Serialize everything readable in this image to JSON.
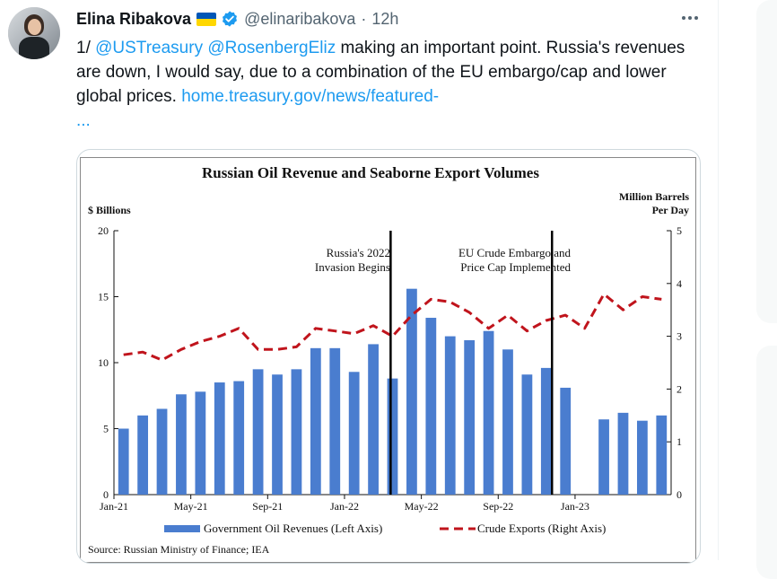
{
  "tweet": {
    "author_name": "Elina Ribakova",
    "flag_icon": "ukraine-flag",
    "handle": "@elinaribakova",
    "separator": "·",
    "time": "12h",
    "more_icon": "more-horizontal-icon",
    "text_prefix": "1/ ",
    "mention1": "@USTreasury",
    "mention2": "@RosenbergEliz",
    "text_main": " making an important point. Russia's revenues are down, I would say, due to a combination of the EU embargo/cap and lower global prices. ",
    "link_text": "home.treasury.gov/news/featured-",
    "ellipsis": "..."
  },
  "colors": {
    "bar": "#4a7dcf",
    "line": "#c0141c",
    "link": "#1d9bf0",
    "flag_blue": "#0057b7",
    "flag_yellow": "#ffd700",
    "verified": "#1d9bf0"
  },
  "chart_data": {
    "type": "bar",
    "title": "Russian Oil Revenue and Seaborne Export Volumes",
    "left_axis_label": "$ Billions",
    "right_axis_label_line1": "Million Barrels",
    "right_axis_label_line2": "Per Day",
    "x_tick_labels": [
      "Jan-21",
      "May-21",
      "Sep-21",
      "Jan-22",
      "May-22",
      "Sep-22",
      "Jan-23"
    ],
    "y_left_ticks": [
      "0",
      "5",
      "10",
      "15",
      "20"
    ],
    "y_right_ticks": [
      "0",
      "1",
      "2",
      "3",
      "4",
      "5"
    ],
    "ylim_left": [
      0,
      20
    ],
    "ylim_right": [
      0,
      5
    ],
    "annotations": [
      {
        "line1": "Russia's 2022",
        "line2": "Invasion Begins"
      },
      {
        "line1": "EU Crude Embargo and",
        "line2": "Price Cap Implemented"
      }
    ],
    "series": [
      {
        "name": "Government Oil Revenues (Left Axis)",
        "type": "bar",
        "values": [
          5.0,
          6.0,
          6.5,
          7.6,
          7.8,
          8.5,
          8.6,
          9.5,
          9.1,
          9.5,
          11.1,
          11.1,
          9.3,
          11.4,
          8.8,
          15.6,
          13.4,
          12.0,
          11.7,
          12.4,
          11.0,
          9.1,
          9.6,
          8.1,
          5.7,
          6.2,
          5.6,
          6.0
        ]
      },
      {
        "name": "Crude Exports (Right Axis)",
        "type": "line",
        "values": [
          2.65,
          2.7,
          2.55,
          2.75,
          2.9,
          3.0,
          3.15,
          2.75,
          2.75,
          2.8,
          3.15,
          3.1,
          3.05,
          3.2,
          3.0,
          3.4,
          3.7,
          3.65,
          3.45,
          3.15,
          3.4,
          3.1,
          3.3,
          3.4,
          3.15,
          3.8,
          3.5,
          3.75,
          3.7
        ]
      }
    ],
    "source": "Source: Russian Ministry of Finance; IEA"
  }
}
